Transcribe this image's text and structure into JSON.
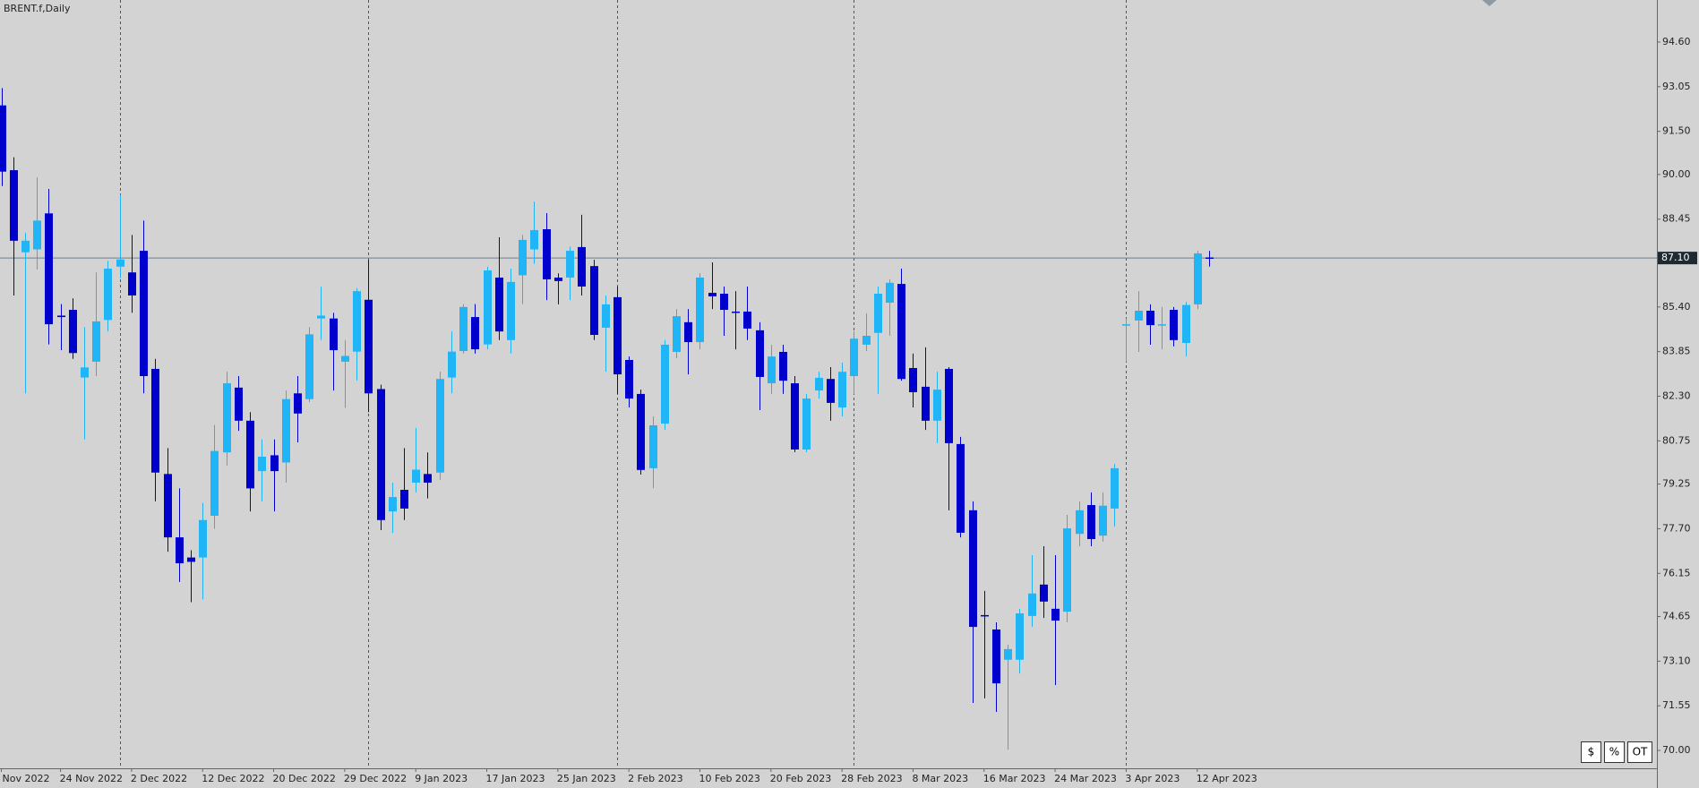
{
  "chart_data": {
    "type": "candlestick",
    "title": "BRENT.f,Daily",
    "categories": [
      "Nov 2022",
      null,
      null,
      null,
      null,
      "24 Nov 2022",
      null,
      null,
      null,
      null,
      null,
      "2 Dec 2022",
      null,
      null,
      null,
      null,
      null,
      "12 Dec 2022",
      null,
      null,
      null,
      null,
      null,
      "20 Dec 2022",
      null,
      null,
      null,
      null,
      null,
      "29 Dec 2022",
      null,
      null,
      null,
      null,
      null,
      "9 Jan 2023",
      null,
      null,
      null,
      null,
      null,
      "17 Jan 2023",
      null,
      null,
      null,
      null,
      null,
      "25 Jan 2023",
      null,
      null,
      null,
      null,
      null,
      "2 Feb 2023",
      null,
      null,
      null,
      null,
      null,
      "10 Feb 2023",
      null,
      null,
      null,
      null,
      null,
      "20 Feb 2023",
      null,
      null,
      null,
      null,
      null,
      "28 Feb 2023",
      null,
      null,
      null,
      null,
      null,
      "8 Mar 2023",
      null,
      null,
      null,
      null,
      null,
      "16 Mar 2023",
      null,
      null,
      null,
      null,
      null,
      "24 Mar 2023",
      null,
      null,
      null,
      null,
      null,
      "3 Apr 2023",
      null,
      null,
      null,
      null,
      null,
      "12 Apr 2023",
      null
    ],
    "open": [
      92.4,
      90.15,
      87.3,
      87.4,
      88.65,
      85.1,
      85.3,
      82.95,
      83.5,
      84.95,
      86.8,
      86.6,
      87.35,
      83.25,
      79.6,
      77.4,
      76.7,
      76.7,
      78.15,
      80.35,
      82.6,
      81.45,
      79.7,
      80.25,
      80.0,
      82.4,
      82.2,
      85.0,
      85.0,
      83.5,
      83.85,
      85.65,
      82.55,
      78.3,
      79.05,
      79.3,
      79.6,
      79.65,
      82.95,
      83.87,
      85.05,
      84.1,
      86.42,
      84.25,
      86.5,
      87.4,
      88.1,
      86.42,
      86.42,
      87.48,
      86.82,
      84.68,
      85.74,
      83.56,
      82.38,
      79.8,
      81.35,
      83.84,
      84.87,
      84.18,
      85.89,
      85.86,
      85.24,
      85.24,
      84.59,
      82.75,
      83.84,
      82.75,
      80.45,
      82.5,
      82.9,
      81.91,
      83.0,
      84.09,
      84.5,
      85.55,
      86.2,
      83.28,
      82.63,
      81.45,
      83.25,
      80.64,
      78.34,
      74.7,
      74.2,
      73.15,
      73.15,
      74.67,
      75.76,
      74.92,
      74.82,
      77.52,
      78.52,
      77.46,
      78.4,
      84.8,
      84.93,
      85.27,
      84.8,
      85.3,
      84.15,
      85.49,
      87.12
    ],
    "high": [
      93.0,
      90.6,
      87.98,
      89.9,
      89.5,
      85.5,
      85.7,
      84.7,
      86.6,
      87.0,
      89.3,
      87.9,
      88.4,
      83.6,
      80.5,
      79.1,
      76.95,
      78.6,
      81.3,
      83.15,
      83.0,
      81.75,
      80.8,
      80.8,
      82.5,
      83.0,
      84.7,
      86.1,
      85.2,
      84.25,
      86.05,
      87.04,
      82.7,
      79.3,
      80.5,
      81.2,
      80.35,
      83.15,
      84.55,
      85.5,
      85.5,
      86.8,
      87.82,
      86.73,
      87.9,
      89.06,
      88.66,
      86.57,
      87.5,
      88.6,
      87.04,
      85.8,
      86.11,
      83.68,
      82.53,
      81.6,
      84.25,
      85.33,
      85.33,
      86.57,
      86.95,
      86.11,
      85.95,
      86.11,
      84.87,
      84.09,
      84.09,
      83.0,
      82.38,
      83.15,
      83.31,
      83.47,
      84.56,
      85.18,
      86.11,
      86.36,
      86.73,
      83.78,
      84.0,
      83.15,
      83.31,
      80.89,
      78.65,
      75.54,
      74.45,
      73.67,
      74.92,
      76.78,
      77.09,
      76.78,
      78.18,
      78.65,
      78.96,
      78.96,
      79.95,
      85.0,
      85.95,
      85.49,
      85.4,
      85.4,
      85.58,
      87.35,
      87.35
    ],
    "low": [
      89.6,
      85.8,
      82.4,
      86.7,
      84.1,
      83.9,
      83.6,
      80.8,
      83.0,
      84.55,
      86.4,
      85.2,
      82.4,
      78.65,
      76.9,
      75.85,
      75.15,
      75.25,
      77.7,
      79.9,
      81.1,
      78.3,
      78.65,
      78.3,
      79.3,
      80.7,
      82.1,
      84.25,
      82.5,
      81.9,
      82.85,
      81.75,
      77.65,
      77.55,
      78.0,
      78.96,
      78.75,
      79.4,
      82.4,
      83.78,
      83.78,
      83.93,
      84.25,
      83.78,
      85.5,
      86.9,
      85.64,
      85.49,
      85.64,
      85.8,
      84.25,
      83.15,
      82.38,
      81.91,
      79.58,
      79.11,
      81.13,
      83.62,
      83.06,
      83.93,
      85.33,
      84.4,
      83.93,
      84.25,
      81.82,
      82.38,
      82.38,
      80.36,
      80.36,
      82.22,
      81.45,
      81.6,
      82.38,
      83.87,
      82.38,
      84.4,
      82.84,
      81.91,
      81.13,
      80.67,
      78.34,
      77.4,
      71.65,
      71.81,
      71.34,
      70.03,
      72.67,
      74.29,
      74.6,
      72.27,
      74.45,
      77.09,
      77.09,
      77.25,
      77.77,
      83.5,
      83.84,
      84.09,
      83.93,
      84.03,
      83.68,
      85.33,
      86.8
    ],
    "close": [
      90.1,
      87.7,
      87.7,
      88.4,
      84.8,
      85.05,
      83.8,
      83.3,
      84.9,
      86.73,
      87.05,
      85.8,
      83.0,
      79.65,
      77.4,
      76.5,
      76.55,
      78.0,
      80.4,
      82.75,
      81.45,
      79.1,
      80.2,
      79.7,
      82.2,
      81.7,
      84.45,
      85.1,
      83.9,
      83.7,
      85.95,
      82.4,
      78.0,
      78.8,
      78.4,
      79.75,
      79.3,
      82.9,
      83.85,
      85.4,
      83.93,
      86.67,
      84.55,
      86.27,
      87.73,
      88.07,
      86.36,
      86.3,
      87.35,
      86.11,
      84.43,
      85.49,
      83.06,
      82.22,
      79.74,
      81.29,
      84.09,
      85.08,
      84.18,
      86.42,
      85.77,
      85.3,
      85.2,
      84.65,
      82.97,
      83.68,
      82.84,
      80.45,
      82.22,
      82.94,
      82.07,
      83.15,
      84.3,
      84.4,
      85.86,
      86.24,
      82.9,
      82.44,
      81.45,
      82.53,
      80.67,
      77.56,
      74.29,
      74.66,
      72.33,
      73.52,
      74.76,
      75.45,
      75.17,
      74.51,
      77.71,
      78.34,
      77.34,
      78.5,
      79.8,
      84.8,
      85.27,
      84.77,
      84.8,
      84.25,
      85.47,
      87.26,
      87.1
    ],
    "up_color": "#1fb5f7",
    "down_color": "#0000cd",
    "ylim": [
      69.38,
      96.06
    ],
    "yticks": [
      {
        "value": 70.0,
        "label": "70.00"
      },
      {
        "value": 71.55,
        "label": "71.55"
      },
      {
        "value": 73.1,
        "label": "73.10"
      },
      {
        "value": 74.65,
        "label": "74.65"
      },
      {
        "value": 76.15,
        "label": "76.15"
      },
      {
        "value": 77.7,
        "label": "77.70"
      },
      {
        "value": 79.25,
        "label": "79.25"
      },
      {
        "value": 80.75,
        "label": "80.75"
      },
      {
        "value": 82.3,
        "label": "82.30"
      },
      {
        "value": 83.85,
        "label": "83.85"
      },
      {
        "value": 85.4,
        "label": "85.40"
      },
      {
        "value": 88.45,
        "label": "88.45"
      },
      {
        "value": 90.0,
        "label": "90.00"
      },
      {
        "value": 91.5,
        "label": "91.50"
      },
      {
        "value": 93.05,
        "label": "93.05"
      },
      {
        "value": 94.6,
        "label": "94.60"
      }
    ],
    "last_price": {
      "value": 87.1,
      "label": "87.10"
    },
    "buttons": [
      "$",
      "%",
      "OT"
    ]
  }
}
